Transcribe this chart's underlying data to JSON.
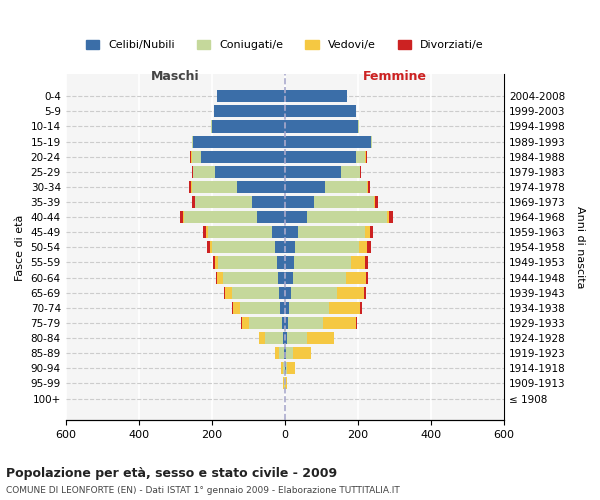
{
  "age_groups": [
    "100+",
    "95-99",
    "90-94",
    "85-89",
    "80-84",
    "75-79",
    "70-74",
    "65-69",
    "60-64",
    "55-59",
    "50-54",
    "45-49",
    "40-44",
    "35-39",
    "30-34",
    "25-29",
    "20-24",
    "15-19",
    "10-14",
    "5-9",
    "0-4"
  ],
  "birth_years": [
    "≤ 1908",
    "1909-1913",
    "1914-1918",
    "1919-1923",
    "1924-1928",
    "1929-1933",
    "1934-1938",
    "1939-1943",
    "1944-1948",
    "1949-1953",
    "1954-1958",
    "1959-1963",
    "1964-1968",
    "1969-1973",
    "1974-1978",
    "1979-1983",
    "1984-1988",
    "1989-1993",
    "1994-1998",
    "1999-2003",
    "2004-2008"
  ],
  "male": {
    "cel": [
      0,
      0,
      0,
      2,
      5,
      8,
      12,
      15,
      20,
      22,
      28,
      35,
      75,
      90,
      130,
      190,
      230,
      250,
      200,
      195,
      185
    ],
    "con": [
      0,
      2,
      5,
      15,
      50,
      90,
      110,
      130,
      150,
      160,
      170,
      175,
      200,
      155,
      125,
      60,
      25,
      5,
      2,
      0,
      0
    ],
    "ved": [
      0,
      2,
      5,
      10,
      15,
      20,
      20,
      18,
      15,
      10,
      8,
      5,
      3,
      2,
      2,
      2,
      2,
      0,
      0,
      0,
      0
    ],
    "div": [
      0,
      0,
      0,
      0,
      0,
      2,
      2,
      3,
      3,
      5,
      8,
      10,
      10,
      8,
      5,
      3,
      2,
      0,
      0,
      0,
      0
    ]
  },
  "female": {
    "cel": [
      0,
      0,
      2,
      3,
      5,
      10,
      12,
      18,
      22,
      25,
      28,
      35,
      60,
      80,
      110,
      155,
      195,
      235,
      200,
      195,
      170
    ],
    "con": [
      0,
      0,
      5,
      20,
      55,
      95,
      110,
      125,
      145,
      155,
      175,
      185,
      220,
      165,
      115,
      50,
      25,
      5,
      2,
      0,
      0
    ],
    "ved": [
      0,
      5,
      20,
      50,
      75,
      90,
      85,
      75,
      55,
      40,
      22,
      12,
      5,
      3,
      2,
      2,
      2,
      0,
      0,
      0,
      0
    ],
    "div": [
      0,
      0,
      0,
      0,
      0,
      2,
      5,
      3,
      5,
      8,
      10,
      10,
      12,
      8,
      5,
      2,
      2,
      0,
      0,
      0,
      0
    ]
  },
  "colors": {
    "cel": "#3B6EA8",
    "con": "#C5D89B",
    "ved": "#F5C842",
    "div": "#CC2222"
  },
  "xlim": [
    -600,
    600
  ],
  "xticks": [
    -600,
    -400,
    -200,
    0,
    200,
    400,
    600
  ],
  "xticklabels": [
    "600",
    "400",
    "200",
    "0",
    "200",
    "400",
    "600"
  ],
  "title": "Popolazione per età, sesso e stato civile - 2009",
  "subtitle": "COMUNE DI LEONFORTE (EN) - Dati ISTAT 1° gennaio 2009 - Elaborazione TUTTITALIA.IT",
  "ylabel_left": "Fasce di età",
  "ylabel_right": "Anni di nascita",
  "label_maschi": "Maschi",
  "label_femmine": "Femmine",
  "legend_labels": [
    "Celibi/Nubili",
    "Coniugati/e",
    "Vedovi/e",
    "Divorziati/e"
  ],
  "bg_color": "#f5f5f5",
  "bar_height": 0.8
}
